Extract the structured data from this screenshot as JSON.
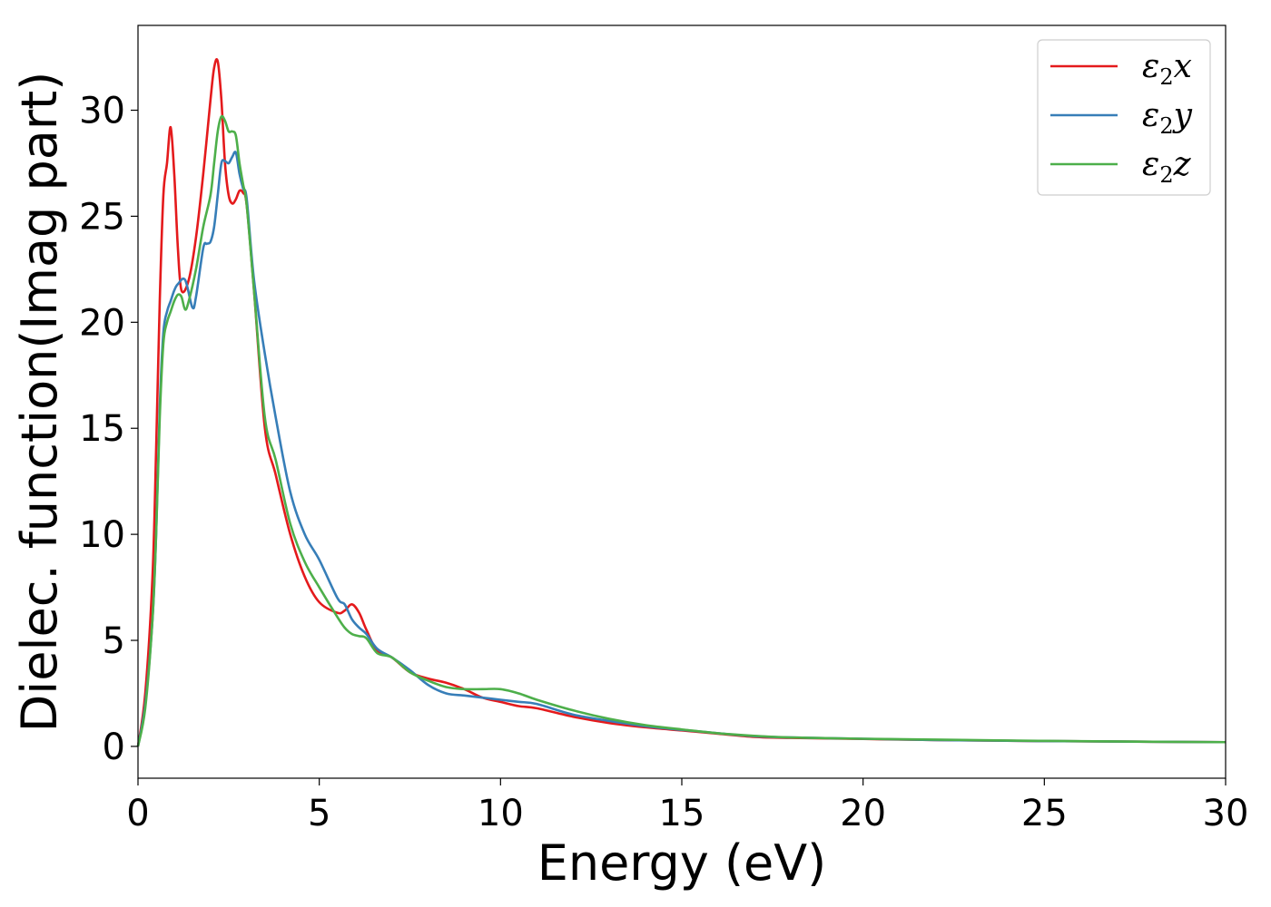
{
  "chart_data": {
    "type": "line",
    "title": "",
    "xlabel": "Energy (eV)",
    "ylabel": "Dielec. function(Imag part)",
    "xlim": [
      0,
      30
    ],
    "ylim": [
      -1.5,
      34
    ],
    "xticks": [
      0,
      5,
      10,
      15,
      20,
      25,
      30
    ],
    "yticks": [
      0,
      5,
      10,
      15,
      20,
      25,
      30
    ],
    "grid": false,
    "legend_position": "top-right",
    "series": [
      {
        "name_base": "ε",
        "name_sub": "2",
        "name_suffix": "x",
        "color": "#e41a1c",
        "x": [
          0,
          0.2,
          0.4,
          0.5,
          0.6,
          0.7,
          0.8,
          0.9,
          1.0,
          1.1,
          1.2,
          1.4,
          1.6,
          1.8,
          2.0,
          2.1,
          2.2,
          2.3,
          2.4,
          2.5,
          2.6,
          2.7,
          2.8,
          2.9,
          3.0,
          3.2,
          3.5,
          3.8,
          4.2,
          4.6,
          5.0,
          5.5,
          5.7,
          5.9,
          6.1,
          6.3,
          6.6,
          7.0,
          7.5,
          8.0,
          8.5,
          9.0,
          9.5,
          10.0,
          10.5,
          11.0,
          12.0,
          13.0,
          14.0,
          15.0,
          16.0,
          17.0,
          18.0,
          20.0,
          22.0,
          25.0,
          28.0,
          30.0
        ],
        "y": [
          0,
          2.5,
          8,
          14,
          21,
          26,
          27.5,
          29.2,
          27,
          23.5,
          21.5,
          22,
          24,
          27,
          30.5,
          32,
          32.3,
          30.5,
          27.5,
          26,
          25.6,
          25.8,
          26.2,
          26.1,
          25.5,
          21.5,
          15,
          12.8,
          10,
          8,
          6.8,
          6.3,
          6.4,
          6.7,
          6.3,
          5.5,
          4.5,
          4.2,
          3.5,
          3.2,
          3.0,
          2.7,
          2.3,
          2.1,
          1.9,
          1.8,
          1.4,
          1.1,
          0.9,
          0.75,
          0.6,
          0.45,
          0.4,
          0.35,
          0.3,
          0.25,
          0.22,
          0.2
        ]
      },
      {
        "name_base": "ε",
        "name_sub": "2",
        "name_suffix": "y",
        "color": "#377eb8",
        "x": [
          0,
          0.2,
          0.4,
          0.5,
          0.6,
          0.7,
          0.8,
          0.9,
          1.0,
          1.1,
          1.3,
          1.5,
          1.6,
          1.8,
          1.9,
          2.0,
          2.1,
          2.2,
          2.3,
          2.4,
          2.5,
          2.6,
          2.7,
          2.8,
          2.9,
          3.0,
          3.2,
          3.5,
          3.8,
          4.2,
          4.6,
          5.0,
          5.5,
          5.7,
          5.9,
          6.1,
          6.3,
          6.6,
          7.0,
          7.5,
          8.0,
          8.5,
          9.0,
          9.5,
          10.0,
          10.5,
          11.0,
          12.0,
          13.0,
          14.0,
          15.0,
          16.0,
          17.0,
          18.0,
          20.0,
          22.0,
          25.0,
          28.0,
          30.0
        ],
        "y": [
          0,
          2,
          6,
          10,
          16,
          19.5,
          20.5,
          21,
          21.5,
          21.8,
          22,
          20.7,
          21.2,
          23.5,
          23.7,
          23.8,
          24.5,
          26,
          27.5,
          27.6,
          27.5,
          27.8,
          28,
          27,
          26.3,
          25.8,
          22,
          18.5,
          15.5,
          12,
          10,
          8.8,
          7,
          6.7,
          6.0,
          5.6,
          5.3,
          4.6,
          4.2,
          3.6,
          2.9,
          2.5,
          2.4,
          2.3,
          2.2,
          2.1,
          2.0,
          1.5,
          1.2,
          0.95,
          0.78,
          0.62,
          0.48,
          0.42,
          0.36,
          0.3,
          0.25,
          0.22,
          0.2
        ]
      },
      {
        "name_base": "ε",
        "name_sub": "2",
        "name_suffix": "z",
        "color": "#4daf4a",
        "x": [
          0,
          0.2,
          0.4,
          0.5,
          0.6,
          0.7,
          0.8,
          0.9,
          1.0,
          1.1,
          1.2,
          1.3,
          1.4,
          1.6,
          1.8,
          2.0,
          2.1,
          2.2,
          2.3,
          2.4,
          2.5,
          2.6,
          2.7,
          2.8,
          2.9,
          3.0,
          3.2,
          3.5,
          3.8,
          4.2,
          4.6,
          5.0,
          5.5,
          5.7,
          5.9,
          6.1,
          6.3,
          6.6,
          7.0,
          7.5,
          8.0,
          8.5,
          9.0,
          9.5,
          10.0,
          10.5,
          11.0,
          12.0,
          13.0,
          14.0,
          15.0,
          16.0,
          17.0,
          18.0,
          20.0,
          22.0,
          25.0,
          28.0,
          30.0
        ],
        "y": [
          0,
          1.8,
          6,
          10,
          15.5,
          19,
          20,
          20.5,
          21,
          21.3,
          21.2,
          20.6,
          21,
          22.5,
          24.5,
          26,
          27.5,
          29,
          29.7,
          29.5,
          29,
          29,
          28.8,
          27.5,
          26.5,
          25.5,
          21.5,
          15.5,
          13.5,
          10.5,
          8.7,
          7.5,
          6.1,
          5.6,
          5.3,
          5.2,
          5.1,
          4.4,
          4.2,
          3.5,
          3.1,
          2.8,
          2.7,
          2.7,
          2.7,
          2.5,
          2.2,
          1.7,
          1.3,
          1.0,
          0.8,
          0.62,
          0.5,
          0.42,
          0.36,
          0.32,
          0.26,
          0.22,
          0.2
        ]
      }
    ]
  }
}
